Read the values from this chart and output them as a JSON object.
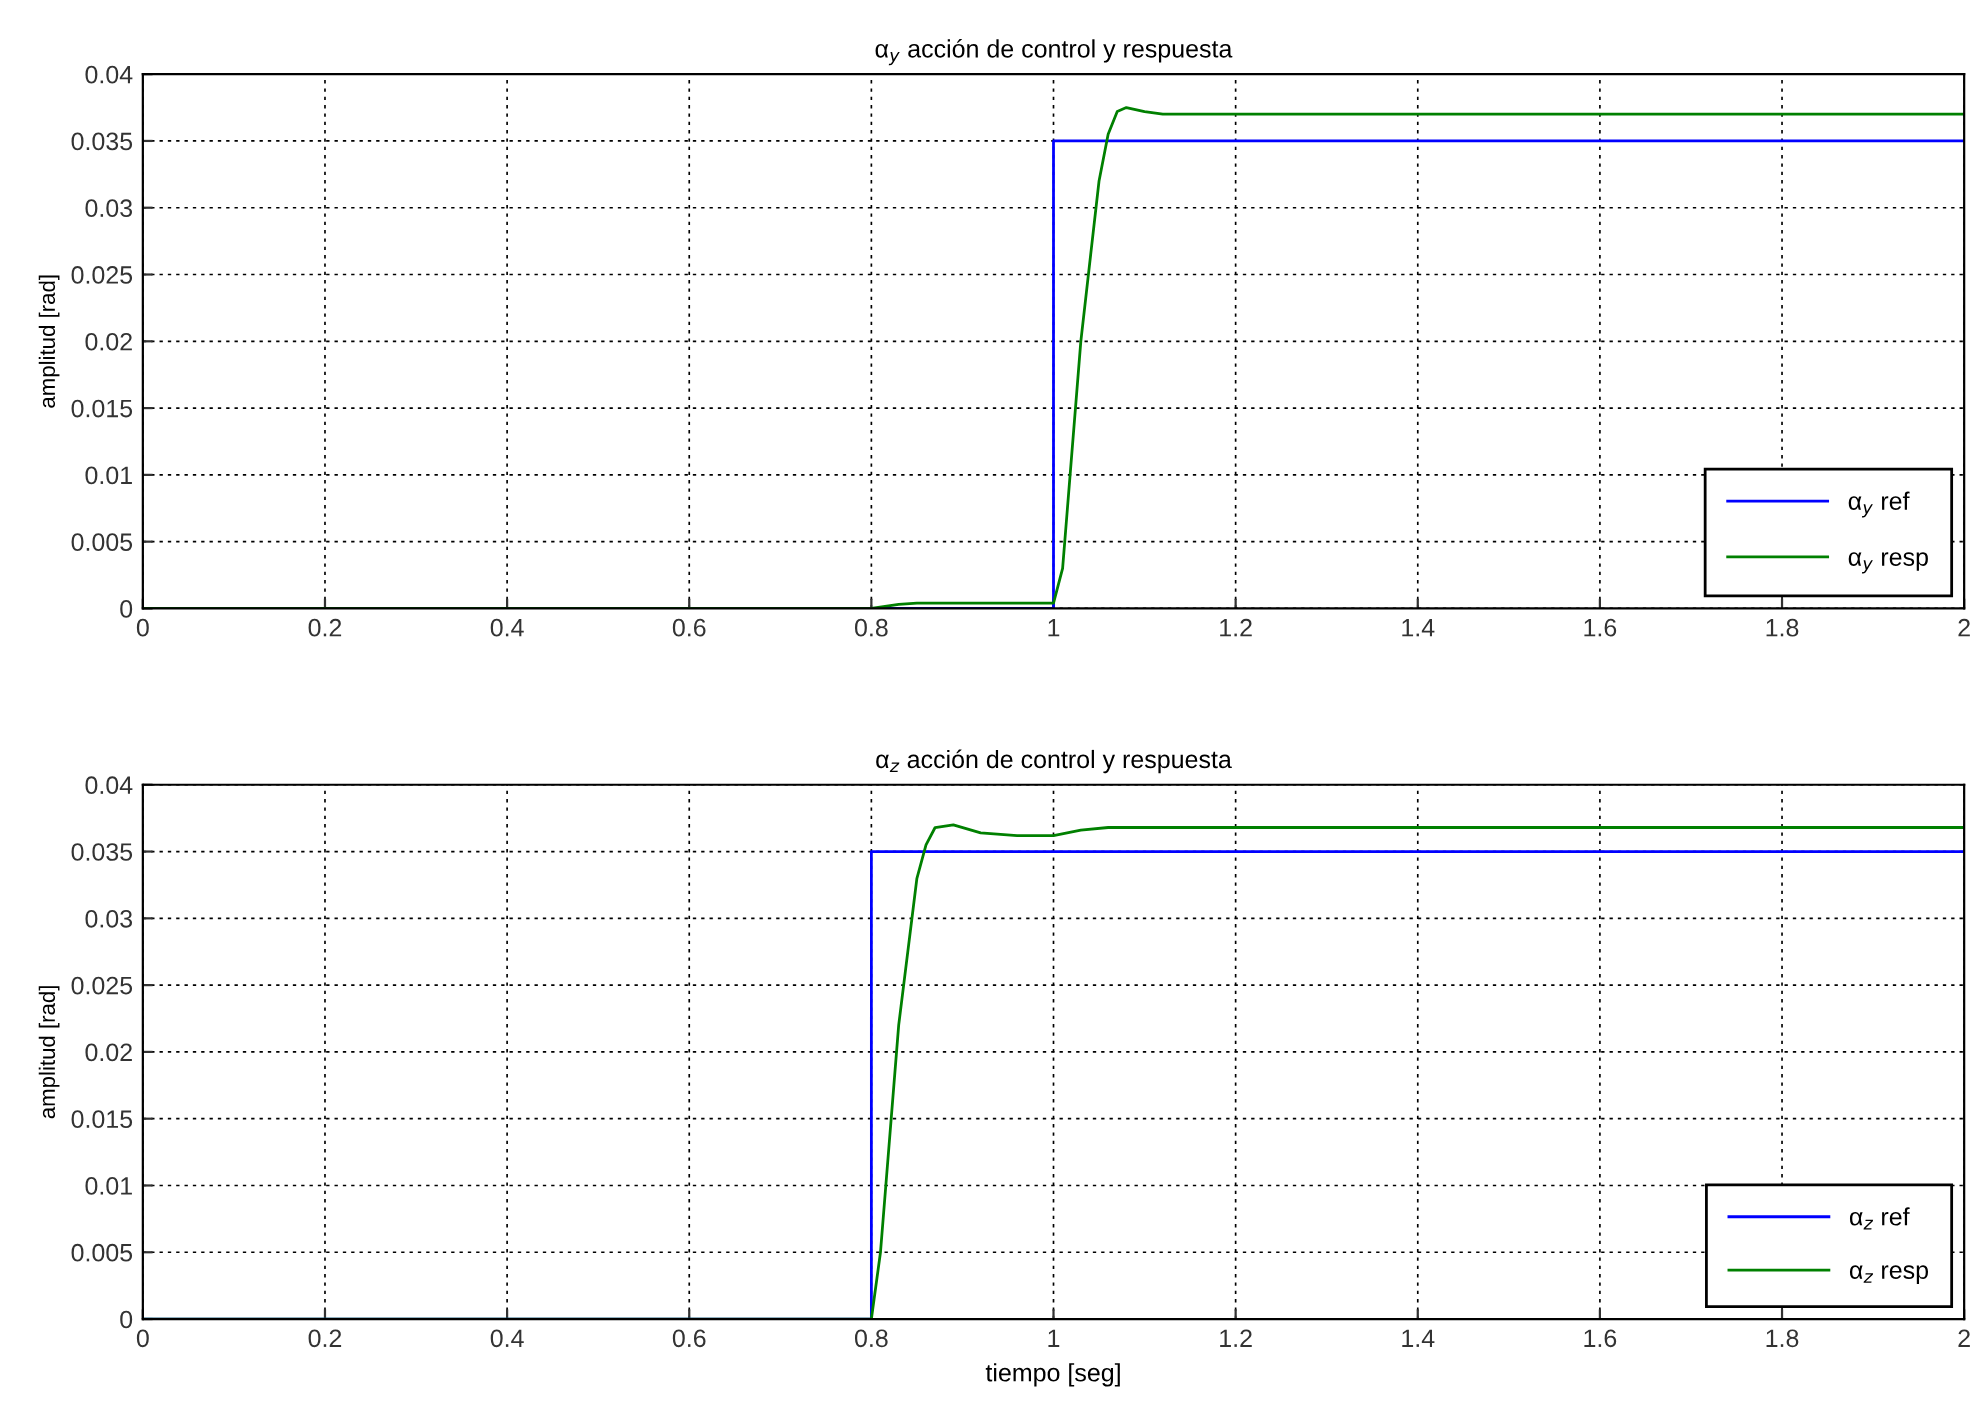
{
  "chart_data": [
    {
      "type": "line",
      "title": "α$_{y}$ acción de control y respuesta",
      "ylabel": "amplitud [rad]",
      "xlim": [
        0,
        2
      ],
      "ylim": [
        0,
        0.04
      ],
      "xticks": [
        0,
        0.2,
        0.4,
        0.6,
        0.8,
        1,
        1.2,
        1.4,
        1.6,
        1.8,
        2
      ],
      "yticks": [
        0,
        0.005,
        0.01,
        0.015,
        0.02,
        0.025,
        0.03,
        0.035,
        0.04
      ],
      "grid": true,
      "legend": "bottom right",
      "line_style": "solid",
      "marker": "none",
      "series": [
        {
          "name": "α$_{y}$ ref",
          "color": "#0000ff",
          "x": [
            0,
            1,
            1,
            2
          ],
          "values": [
            0,
            0,
            0.035,
            0.035
          ]
        },
        {
          "name": "α$_{y}$ resp",
          "color": "#008000",
          "x": [
            0,
            0.8,
            0.83,
            0.85,
            1.0,
            1.01,
            1.03,
            1.05,
            1.06,
            1.07,
            1.08,
            1.1,
            1.12,
            1.15,
            2
          ],
          "values": [
            0,
            0,
            0.0003,
            0.0004,
            0.0004,
            0.003,
            0.02,
            0.032,
            0.0355,
            0.0372,
            0.0375,
            0.0372,
            0.037,
            0.037,
            0.037
          ]
        }
      ]
    },
    {
      "type": "line",
      "title": "α$_{z}$ acción de control y respuesta",
      "ylabel": "amplitud [rad]",
      "xlabel": "tiempo [seg]",
      "xlim": [
        0,
        2
      ],
      "ylim": [
        0,
        0.04
      ],
      "xticks": [
        0,
        0.2,
        0.4,
        0.6,
        0.8,
        1,
        1.2,
        1.4,
        1.6,
        1.8,
        2
      ],
      "yticks": [
        0,
        0.005,
        0.01,
        0.015,
        0.02,
        0.025,
        0.03,
        0.035,
        0.04
      ],
      "grid": true,
      "legend": "bottom right",
      "line_style": "solid",
      "marker": "none",
      "series": [
        {
          "name": "α$_{z}$ ref",
          "color": "#0000ff",
          "x": [
            0,
            0.8,
            0.8,
            2
          ],
          "values": [
            0,
            0,
            0.035,
            0.035
          ]
        },
        {
          "name": "α$_{z}$ resp",
          "color": "#008000",
          "x": [
            0,
            0.8,
            0.81,
            0.83,
            0.85,
            0.86,
            0.87,
            0.89,
            0.92,
            0.96,
            1.0,
            1.03,
            1.06,
            1.1,
            2
          ],
          "values": [
            0,
            0,
            0.005,
            0.022,
            0.033,
            0.0355,
            0.0368,
            0.037,
            0.0364,
            0.0362,
            0.0362,
            0.0366,
            0.0368,
            0.0368,
            0.0368
          ]
        }
      ]
    }
  ]
}
